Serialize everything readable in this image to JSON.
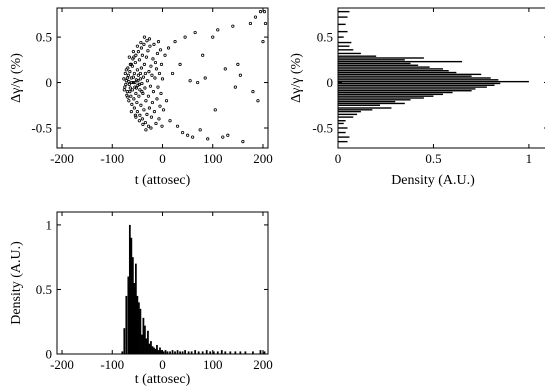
{
  "chart_data": [
    {
      "id": "scatter",
      "type": "scatter",
      "xlabel": "t (attosec)",
      "ylabel": "Δγ/γ (%)",
      "xlim": [
        -210,
        210
      ],
      "ylim": [
        -0.72,
        0.82
      ],
      "xticks": [
        -200,
        -100,
        0,
        100,
        200
      ],
      "yticks": [
        -0.5,
        0,
        0.5
      ],
      "grid": false,
      "points": [
        [
          -75,
          -0.05
        ],
        [
          -72,
          0.02
        ],
        [
          -70,
          -0.1
        ],
        [
          -68,
          0.08
        ],
        [
          -66,
          -0.02
        ],
        [
          -65,
          0.12
        ],
        [
          -63,
          -0.15
        ],
        [
          -62,
          0.05
        ],
        [
          -60,
          -0.08
        ],
        [
          -60,
          0.18
        ],
        [
          -58,
          0.0
        ],
        [
          -57,
          -0.18
        ],
        [
          -56,
          0.1
        ],
        [
          -55,
          -0.05
        ],
        [
          -54,
          0.22
        ],
        [
          -53,
          -0.12
        ],
        [
          -52,
          0.03
        ],
        [
          -51,
          -0.22
        ],
        [
          -50,
          0.14
        ],
        [
          -49,
          -0.03
        ],
        [
          -48,
          0.08
        ],
        [
          -47,
          -0.15
        ],
        [
          -46,
          0.25
        ],
        [
          -45,
          -0.08
        ],
        [
          -44,
          0.04
        ],
        [
          -43,
          -0.25
        ],
        [
          -42,
          0.16
        ],
        [
          -41,
          -0.01
        ],
        [
          -40,
          0.3
        ],
        [
          -39,
          -0.12
        ],
        [
          -38,
          0.06
        ],
        [
          -37,
          -0.3
        ],
        [
          -36,
          0.2
        ],
        [
          -35,
          -0.06
        ],
        [
          -34,
          0.1
        ],
        [
          -33,
          -0.2
        ],
        [
          -32,
          0.28
        ],
        [
          -31,
          -0.35
        ],
        [
          -30,
          0.02
        ],
        [
          -29,
          0.35
        ],
        [
          -28,
          -0.15
        ],
        [
          -27,
          0.12
        ],
        [
          -26,
          -0.28
        ],
        [
          -25,
          0.4
        ],
        [
          -24,
          -0.04
        ],
        [
          -23,
          0.18
        ],
        [
          -22,
          -0.38
        ],
        [
          -21,
          0.08
        ],
        [
          -20,
          -0.22
        ],
        [
          -19,
          0.26
        ],
        [
          -18,
          -0.1
        ],
        [
          -17,
          0.42
        ],
        [
          -16,
          -0.32
        ],
        [
          -15,
          0.05
        ],
        [
          -14,
          0.22
        ],
        [
          -13,
          -0.45
        ],
        [
          -12,
          0.15
        ],
        [
          -11,
          -0.18
        ],
        [
          -10,
          0.32
        ],
        [
          -9,
          -0.05
        ],
        [
          -8,
          0.45
        ],
        [
          -7,
          -0.4
        ],
        [
          -6,
          0.1
        ],
        [
          -5,
          -0.26
        ],
        [
          -4,
          0.36
        ],
        [
          -3,
          -0.12
        ],
        [
          -2,
          0.2
        ],
        [
          -1,
          -0.48
        ],
        [
          0,
          0.04
        ],
        [
          2,
          -0.3
        ],
        [
          -74,
          0.1
        ],
        [
          -71,
          -0.14
        ],
        [
          -69,
          0.16
        ],
        [
          -67,
          -0.2
        ],
        [
          -64,
          0.2
        ],
        [
          -61,
          -0.24
        ],
        [
          -59,
          0.26
        ],
        [
          -56,
          -0.28
        ],
        [
          -53,
          0.3
        ],
        [
          -50,
          -0.32
        ],
        [
          -48,
          0.34
        ],
        [
          -45,
          -0.36
        ],
        [
          -42,
          0.38
        ],
        [
          -40,
          -0.4
        ],
        [
          -37,
          0.42
        ],
        [
          -34,
          -0.44
        ],
        [
          -31,
          0.46
        ],
        [
          -28,
          -0.48
        ],
        [
          -26,
          0.48
        ],
        [
          -23,
          -0.5
        ],
        [
          -73,
          -0.02
        ],
        [
          -70,
          0.05
        ],
        [
          -67,
          0.01
        ],
        [
          -64,
          -0.06
        ],
        [
          -61,
          0.0
        ],
        [
          -58,
          0.06
        ],
        [
          -55,
          0.0
        ],
        [
          -52,
          -0.06
        ],
        [
          -49,
          0.02
        ],
        [
          -46,
          -0.02
        ],
        [
          -66,
          0.28
        ],
        [
          -62,
          -0.32
        ],
        [
          -58,
          0.34
        ],
        [
          -54,
          -0.36
        ],
        [
          -50,
          0.4
        ],
        [
          -46,
          -0.42
        ],
        [
          -43,
          0.44
        ],
        [
          -39,
          -0.46
        ],
        [
          -36,
          0.5
        ],
        [
          -33,
          -0.52
        ],
        [
          -77,
          0.04
        ],
        [
          -76,
          -0.08
        ],
        [
          -72,
          0.14
        ],
        [
          -69,
          -0.16
        ],
        [
          -65,
          -0.1
        ],
        [
          -62,
          0.2
        ],
        [
          -57,
          0.28
        ],
        [
          -53,
          -0.38
        ],
        [
          -44,
          0.1
        ],
        [
          -41,
          -0.1
        ],
        [
          5,
          0.3
        ],
        [
          8,
          -0.2
        ],
        [
          12,
          0.38
        ],
        [
          15,
          -0.42
        ],
        [
          20,
          0.1
        ],
        [
          25,
          0.45
        ],
        [
          30,
          -0.48
        ],
        [
          35,
          0.2
        ],
        [
          40,
          -0.55
        ],
        [
          45,
          0.5
        ],
        [
          50,
          -0.58
        ],
        [
          55,
          0.02
        ],
        [
          60,
          -0.6
        ],
        [
          65,
          0.55
        ],
        [
          70,
          0.0
        ],
        [
          75,
          -0.52
        ],
        [
          80,
          0.3
        ],
        [
          90,
          -0.62
        ],
        [
          100,
          0.5
        ],
        [
          105,
          -0.3
        ],
        [
          110,
          0.58
        ],
        [
          120,
          -0.6
        ],
        [
          125,
          0.15
        ],
        [
          130,
          -0.58
        ],
        [
          140,
          0.62
        ],
        [
          145,
          -0.05
        ],
        [
          155,
          0.08
        ],
        [
          160,
          -0.65
        ],
        [
          175,
          0.65
        ],
        [
          185,
          0.72
        ],
        [
          190,
          -0.2
        ],
        [
          195,
          0.78
        ],
        [
          200,
          0.45
        ],
        [
          205,
          0.65
        ],
        [
          203,
          0.78
        ],
        [
          180,
          -0.1
        ],
        [
          150,
          0.2
        ],
        [
          85,
          0.05
        ]
      ]
    },
    {
      "id": "energy_hist",
      "type": "bar",
      "orientation": "horizontal",
      "xlabel": "Density (A.U.)",
      "ylabel": "Δγ/γ (%)",
      "xlim": [
        0,
        1.1
      ],
      "ylim": [
        -0.72,
        0.82
      ],
      "xticks": [
        0,
        0.5,
        1
      ],
      "yticks": [
        -0.5,
        0,
        0.5
      ],
      "bin_width": 0.0154,
      "bins": [
        [
          -0.65,
          0.05
        ],
        [
          -0.6,
          0.06
        ],
        [
          -0.55,
          0.04
        ],
        [
          -0.5,
          0.05
        ],
        [
          -0.45,
          0.03
        ],
        [
          -0.42,
          0.04
        ],
        [
          -0.38,
          0.08
        ],
        [
          -0.35,
          0.1
        ],
        [
          -0.32,
          0.12
        ],
        [
          -0.3,
          0.18
        ],
        [
          -0.28,
          0.28
        ],
        [
          -0.25,
          0.22
        ],
        [
          -0.23,
          0.35
        ],
        [
          -0.21,
          0.3
        ],
        [
          -0.19,
          0.38
        ],
        [
          -0.17,
          0.45
        ],
        [
          -0.15,
          0.5
        ],
        [
          -0.13,
          0.55
        ],
        [
          -0.11,
          0.6
        ],
        [
          -0.09,
          0.7
        ],
        [
          -0.07,
          0.72
        ],
        [
          -0.05,
          0.78
        ],
        [
          -0.03,
          0.82
        ],
        [
          -0.01,
          0.85
        ],
        [
          0.01,
          1.0
        ],
        [
          0.03,
          0.84
        ],
        [
          0.05,
          0.8
        ],
        [
          0.07,
          0.7
        ],
        [
          0.09,
          0.75
        ],
        [
          0.11,
          0.62
        ],
        [
          0.13,
          0.58
        ],
        [
          0.15,
          0.55
        ],
        [
          0.17,
          0.48
        ],
        [
          0.19,
          0.42
        ],
        [
          0.21,
          0.38
        ],
        [
          0.23,
          0.65
        ],
        [
          0.25,
          0.35
        ],
        [
          0.27,
          0.45
        ],
        [
          0.29,
          0.2
        ],
        [
          0.32,
          0.12
        ],
        [
          0.36,
          0.08
        ],
        [
          0.4,
          0.06
        ],
        [
          0.44,
          0.07
        ],
        [
          0.5,
          0.03
        ],
        [
          0.56,
          0.05
        ],
        [
          0.64,
          0.04
        ],
        [
          0.72,
          0.05
        ],
        [
          0.78,
          0.06
        ]
      ]
    },
    {
      "id": "time_hist",
      "type": "bar",
      "xlabel": "t (attosec)",
      "ylabel": "Density (A.U.)",
      "xlim": [
        -210,
        210
      ],
      "ylim": [
        0,
        1.1
      ],
      "xticks": [
        -200,
        -100,
        0,
        100,
        200
      ],
      "yticks": [
        0,
        0.5,
        1
      ],
      "bin_width": 3.5,
      "bins": [
        [
          -80,
          0.02
        ],
        [
          -76,
          0.2
        ],
        [
          -72,
          0.45
        ],
        [
          -68,
          0.6
        ],
        [
          -65,
          1.0
        ],
        [
          -62,
          0.9
        ],
        [
          -59,
          0.75
        ],
        [
          -56,
          0.55
        ],
        [
          -53,
          0.7
        ],
        [
          -50,
          0.45
        ],
        [
          -47,
          0.4
        ],
        [
          -44,
          0.35
        ],
        [
          -41,
          0.15
        ],
        [
          -38,
          0.28
        ],
        [
          -35,
          0.22
        ],
        [
          -32,
          0.12
        ],
        [
          -29,
          0.18
        ],
        [
          -26,
          0.08
        ],
        [
          -23,
          0.1
        ],
        [
          -20,
          0.06
        ],
        [
          -17,
          0.05
        ],
        [
          -14,
          0.04
        ],
        [
          -11,
          0.07
        ],
        [
          -8,
          0.03
        ],
        [
          -5,
          0.05
        ],
        [
          -2,
          0.03
        ],
        [
          2,
          0.02
        ],
        [
          6,
          0.03
        ],
        [
          10,
          0.02
        ],
        [
          15,
          0.02
        ],
        [
          20,
          0.03
        ],
        [
          25,
          0.02
        ],
        [
          30,
          0.03
        ],
        [
          35,
          0.02
        ],
        [
          40,
          0.02
        ],
        [
          45,
          0.03
        ],
        [
          52,
          0.02
        ],
        [
          58,
          0.02
        ],
        [
          65,
          0.03
        ],
        [
          72,
          0.02
        ],
        [
          80,
          0.02
        ],
        [
          88,
          0.03
        ],
        [
          95,
          0.02
        ],
        [
          102,
          0.02
        ],
        [
          110,
          0.02
        ],
        [
          118,
          0.03
        ],
        [
          125,
          0.02
        ],
        [
          135,
          0.02
        ],
        [
          145,
          0.02
        ],
        [
          155,
          0.02
        ],
        [
          165,
          0.02
        ],
        [
          180,
          0.02
        ],
        [
          195,
          0.03
        ],
        [
          203,
          0.02
        ]
      ]
    }
  ]
}
